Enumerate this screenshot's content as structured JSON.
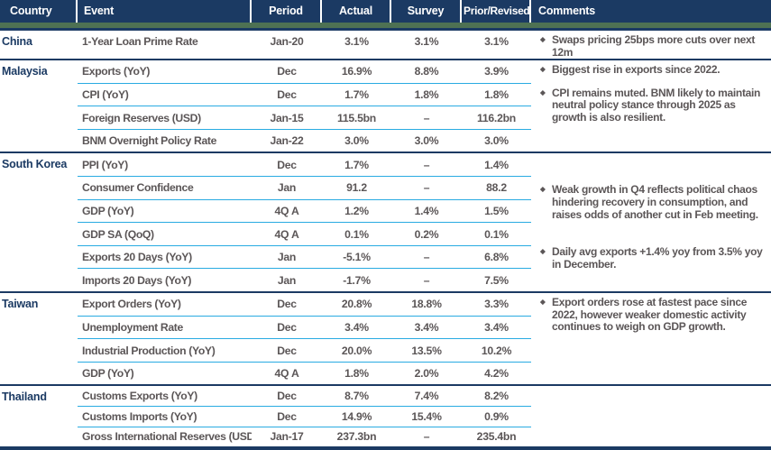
{
  "header": {
    "columns": [
      {
        "label": "Country"
      },
      {
        "label": "Event"
      },
      {
        "label": "Period"
      },
      {
        "label": "Actual"
      },
      {
        "label": "Survey"
      },
      {
        "label": "Prior/Revised"
      },
      {
        "label": "Comments"
      }
    ]
  },
  "groups": [
    {
      "country": "China",
      "rows": [
        {
          "event": "1-Year Loan Prime Rate",
          "period": "Jan-20",
          "actual": "3.1%",
          "survey": "3.1%",
          "prior": "3.1%"
        }
      ],
      "comments": [
        "Swaps pricing 25bps more cuts over next 12m"
      ]
    },
    {
      "country": "Malaysia",
      "rows": [
        {
          "event": "Exports (YoY)",
          "period": "Dec",
          "actual": "16.9%",
          "survey": "8.8%",
          "prior": "3.9%"
        },
        {
          "event": "CPI (YoY)",
          "period": "Dec",
          "actual": "1.7%",
          "survey": "1.8%",
          "prior": "1.8%"
        },
        {
          "event": "Foreign Reserves (USD)",
          "period": "Jan-15",
          "actual": "115.5bn",
          "survey": "–",
          "prior": "116.2bn"
        },
        {
          "event": "BNM Overnight Policy Rate",
          "period": "Jan-22",
          "actual": "3.0%",
          "survey": "3.0%",
          "prior": "3.0%"
        }
      ],
      "comments": [
        "Biggest rise in exports since 2022.",
        "CPI remains muted. BNM likely to maintain neutral policy stance through 2025 as growth is also resilient."
      ]
    },
    {
      "country": "South Korea",
      "rows": [
        {
          "event": "PPI (YoY)",
          "period": "Dec",
          "actual": "1.7%",
          "survey": "–",
          "prior": "1.4%"
        },
        {
          "event": "Consumer Confidence",
          "period": "Jan",
          "actual": "91.2",
          "survey": "–",
          "prior": "88.2"
        },
        {
          "event": "GDP (YoY)",
          "period": "4Q A",
          "actual": "1.2%",
          "survey": "1.4%",
          "prior": "1.5%"
        },
        {
          "event": "GDP SA (QoQ)",
          "period": "4Q A",
          "actual": "0.1%",
          "survey": "0.2%",
          "prior": "0.1%"
        },
        {
          "event": "Exports 20 Days (YoY)",
          "period": "Jan",
          "actual": "-5.1%",
          "survey": "–",
          "prior": "6.8%"
        },
        {
          "event": "Imports 20 Days (YoY)",
          "period": "Jan",
          "actual": "-1.7%",
          "survey": "–",
          "prior": "7.5%"
        }
      ],
      "comments": [
        "Weak growth in Q4 reflects political chaos hindering recovery in consumption, and raises odds of another cut in Feb meeting.",
        "Daily avg exports +1.4% yoy from 3.5% yoy in December."
      ]
    },
    {
      "country": "Taiwan",
      "rows": [
        {
          "event": "Export Orders (YoY)",
          "period": "Dec",
          "actual": "20.8%",
          "survey": "18.8%",
          "prior": "3.3%"
        },
        {
          "event": "Unemployment Rate",
          "period": "Dec",
          "actual": "3.4%",
          "survey": "3.4%",
          "prior": "3.4%"
        },
        {
          "event": "Industrial Production (YoY)",
          "period": "Dec",
          "actual": "20.0%",
          "survey": "13.5%",
          "prior": "10.2%"
        },
        {
          "event": "GDP (YoY)",
          "period": "4Q A",
          "actual": "1.8%",
          "survey": "2.0%",
          "prior": "4.2%"
        }
      ],
      "comments": [
        "Export orders rose at fastest pace since 2022, however weaker domestic activity continues to weigh on GDP growth."
      ]
    },
    {
      "country": "Thailand",
      "rows": [
        {
          "event": "Customs Exports (YoY)",
          "period": "Dec",
          "actual": "8.7%",
          "survey": "7.4%",
          "prior": "8.2%"
        },
        {
          "event": "Customs Imports (YoY)",
          "period": "Dec",
          "actual": "14.9%",
          "survey": "15.4%",
          "prior": "0.9%"
        },
        {
          "event": "Gross International Reserves (USD)",
          "period": "Jan-17",
          "actual": "237.3bn",
          "survey": "–",
          "prior": "235.4bn"
        }
      ],
      "comments": []
    }
  ],
  "icons": {
    "comment_bullet": "diamond-bullet-icon"
  },
  "colors": {
    "header_navy": "#1b3a63",
    "accent_green": "#4e7153",
    "row_divider_cyan": "#29abe2",
    "data_text_gray": "#5b5657",
    "header_text": "#ffffff"
  }
}
